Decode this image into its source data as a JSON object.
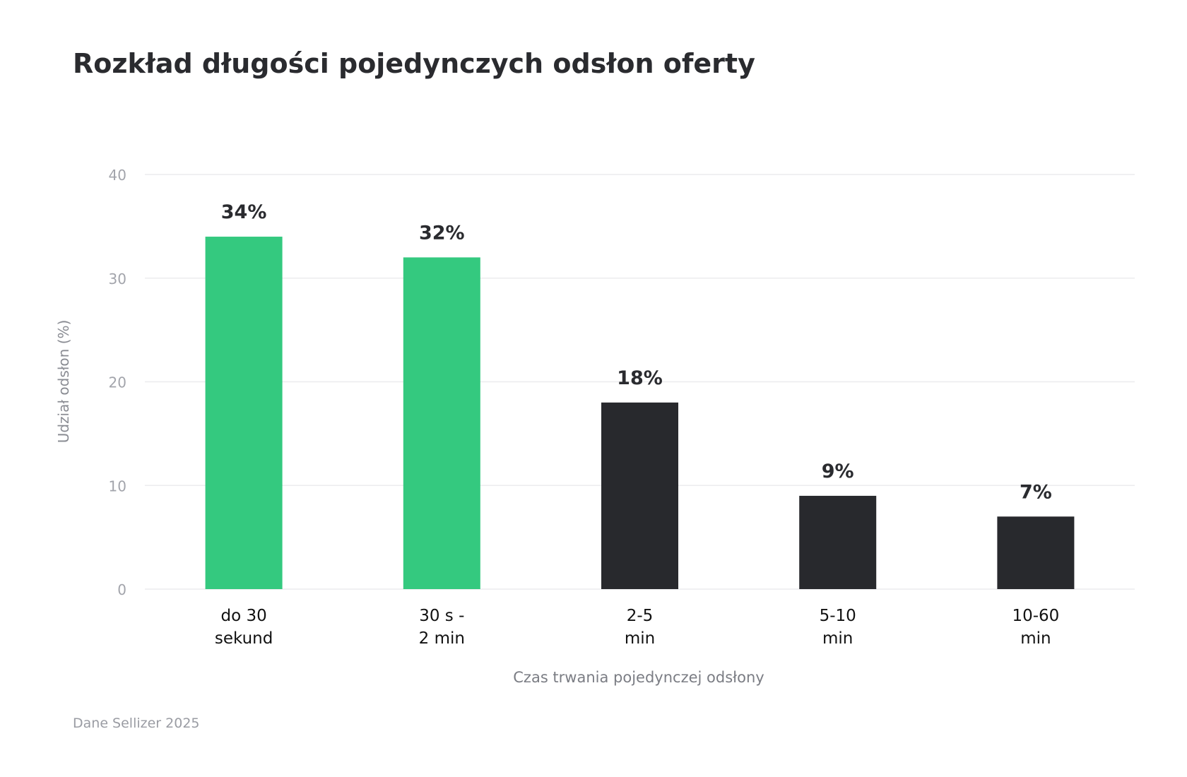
{
  "source_note": "Dane Sellizer 2025",
  "chart_data": {
    "type": "bar",
    "title": "Rozkład długości pojedynczych odsłon oferty",
    "xlabel": "Czas trwania pojedynczej odsłony",
    "ylabel": "Udział odsłon (%)",
    "ylim": [
      0,
      40
    ],
    "yticks": [
      0,
      10,
      20,
      30,
      40
    ],
    "grid": true,
    "categories": [
      [
        "do 30",
        "sekund"
      ],
      [
        "30 s -",
        "2 min"
      ],
      [
        "2-5",
        "min"
      ],
      [
        "5-10",
        "min"
      ],
      [
        "10-60",
        "min"
      ]
    ],
    "values": [
      34,
      32,
      18,
      9,
      7
    ],
    "value_labels": [
      "34%",
      "32%",
      "18%",
      "9%",
      "7%"
    ],
    "colors": [
      "#34c97f",
      "#34c97f",
      "#28292d",
      "#28292d",
      "#28292d"
    ]
  }
}
